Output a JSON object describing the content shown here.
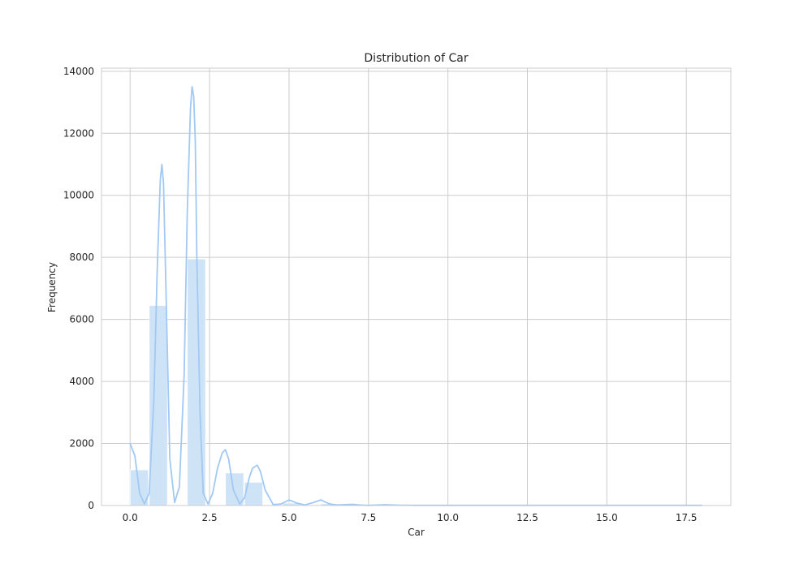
{
  "chart_data": {
    "type": "bar",
    "title": "Distribution of Car",
    "xlabel": "Car",
    "ylabel": "Frequency",
    "xlim": [
      -0.9,
      18.9
    ],
    "ylim": [
      0,
      14100
    ],
    "xticks": [
      "0.0",
      "2.5",
      "5.0",
      "7.5",
      "10.0",
      "12.5",
      "15.0",
      "17.5"
    ],
    "yticks": [
      "0",
      "2000",
      "4000",
      "6000",
      "8000",
      "10000",
      "12000",
      "14000"
    ],
    "grid": true,
    "bar_color": "#cfe3f7",
    "kde_color": "#a1c9f4",
    "bins": [
      {
        "x0": 0.0,
        "x1": 0.6,
        "value": 1150
      },
      {
        "x0": 0.6,
        "x1": 1.2,
        "value": 6450
      },
      {
        "x0": 1.8,
        "x1": 2.4,
        "value": 7950
      },
      {
        "x0": 3.0,
        "x1": 3.6,
        "value": 1050
      },
      {
        "x0": 3.6,
        "x1": 4.2,
        "value": 750
      },
      {
        "x0": 4.8,
        "x1": 5.4,
        "value": 80
      },
      {
        "x0": 6.0,
        "x1": 6.6,
        "value": 60
      },
      {
        "x0": 6.6,
        "x1": 7.2,
        "value": 25
      },
      {
        "x0": 7.8,
        "x1": 8.4,
        "value": 10
      }
    ],
    "kde": {
      "name": "",
      "x": [
        0.0,
        0.15,
        0.3,
        0.45,
        0.6,
        0.75,
        0.85,
        0.95,
        1.0,
        1.05,
        1.15,
        1.25,
        1.4,
        1.55,
        1.7,
        1.8,
        1.9,
        1.95,
        2.0,
        2.05,
        2.1,
        2.2,
        2.3,
        2.45,
        2.6,
        2.75,
        2.9,
        3.0,
        3.1,
        3.25,
        3.45,
        3.6,
        3.75,
        3.85,
        4.0,
        4.1,
        4.25,
        4.5,
        4.75,
        5.0,
        5.25,
        5.5,
        5.75,
        6.0,
        6.25,
        6.5,
        6.75,
        7.0,
        7.25,
        7.5,
        8.0,
        8.5,
        9.0,
        10.0,
        12.0,
        14.0,
        16.0,
        18.0
      ],
      "y": [
        2000,
        1600,
        400,
        50,
        400,
        3500,
        7500,
        10500,
        11000,
        10400,
        6000,
        1500,
        100,
        600,
        4200,
        9500,
        12800,
        13500,
        13200,
        11800,
        8000,
        3000,
        400,
        50,
        400,
        1200,
        1700,
        1800,
        1500,
        500,
        50,
        250,
        900,
        1200,
        1300,
        1100,
        500,
        30,
        50,
        180,
        80,
        20,
        90,
        180,
        60,
        15,
        30,
        40,
        15,
        5,
        25,
        10,
        5,
        5,
        5,
        5,
        5,
        5
      ]
    }
  }
}
